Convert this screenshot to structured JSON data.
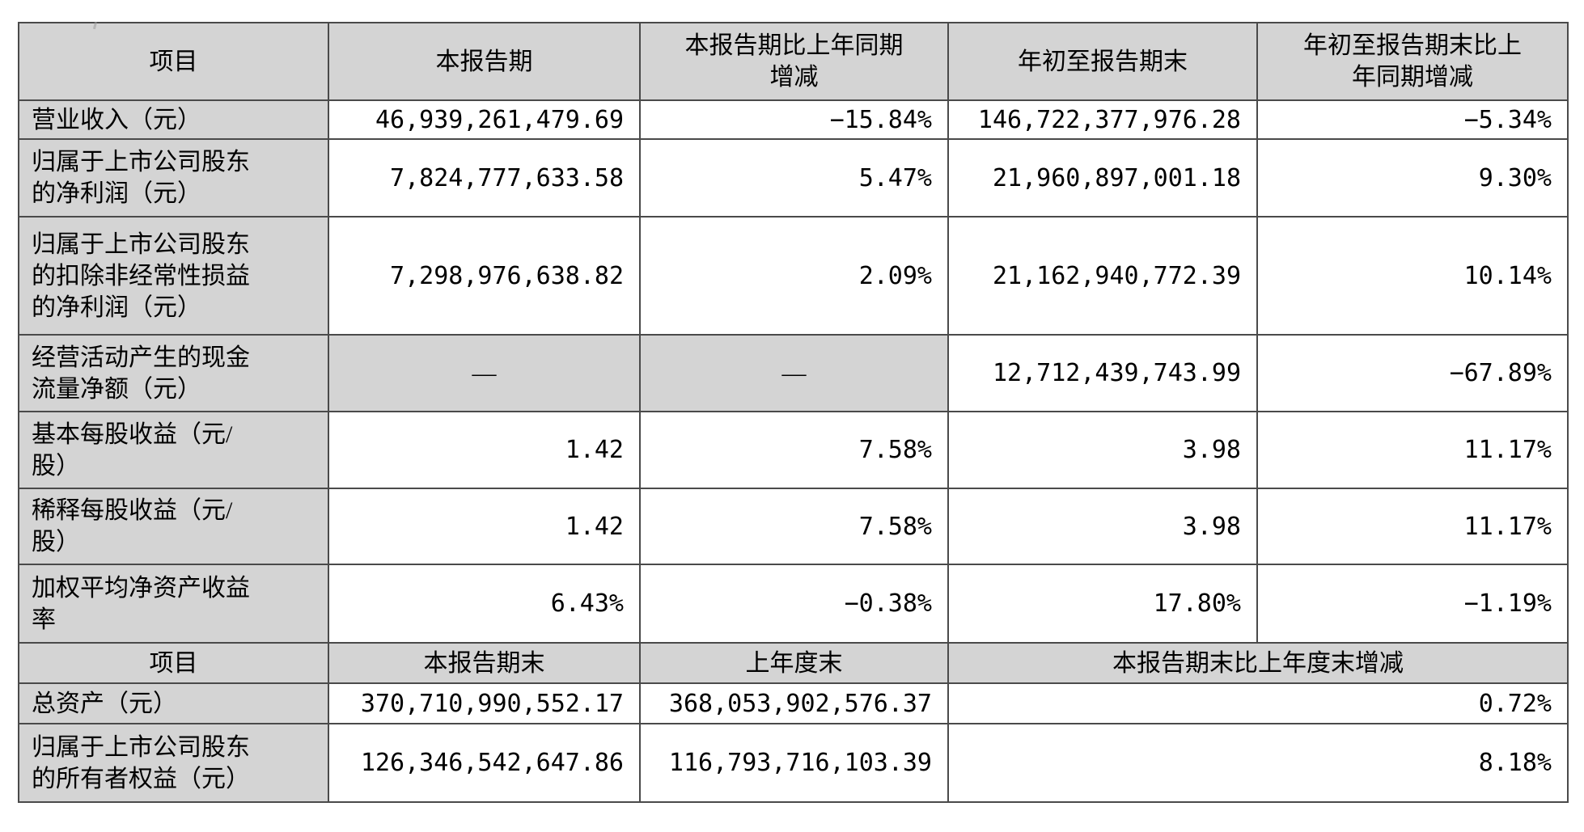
{
  "table": {
    "colors": {
      "header_bg": "#d4d4d4",
      "cell_bg": "#ffffff",
      "border": "#4a4a4a",
      "text": "#000000"
    },
    "section1": {
      "headers": [
        "项目",
        "本报告期",
        "本报告期比上年同期\n增减",
        "年初至报告期末",
        "年初至报告期末比上\n年同期增减"
      ],
      "rows": [
        {
          "label": "营业收入（元）",
          "cells": [
            {
              "v": "46,939,261,479.69"
            },
            {
              "v": "−15.84%"
            },
            {
              "v": "146,722,377,976.28"
            },
            {
              "v": "−5.34%"
            }
          ]
        },
        {
          "label": "归属于上市公司股东\n的净利润（元）",
          "cells": [
            {
              "v": "7,824,777,633.58"
            },
            {
              "v": "5.47%"
            },
            {
              "v": "21,960,897,001.18"
            },
            {
              "v": "9.30%"
            }
          ]
        },
        {
          "label": "归属于上市公司股东\n的扣除非经常性损益\n的净利润（元）",
          "cells": [
            {
              "v": "7,298,976,638.82"
            },
            {
              "v": "2.09%"
            },
            {
              "v": "21,162,940,772.39"
            },
            {
              "v": "10.14%"
            }
          ]
        },
        {
          "label": "经营活动产生的现金\n流量净额（元）",
          "cells": [
            {
              "v": "—",
              "dash": true
            },
            {
              "v": "—",
              "dash": true
            },
            {
              "v": "12,712,439,743.99"
            },
            {
              "v": "−67.89%"
            }
          ]
        },
        {
          "label": "基本每股收益（元/\n股）",
          "cells": [
            {
              "v": "1.42"
            },
            {
              "v": "7.58%"
            },
            {
              "v": "3.98"
            },
            {
              "v": "11.17%"
            }
          ]
        },
        {
          "label": "稀释每股收益（元/\n股）",
          "cells": [
            {
              "v": "1.42"
            },
            {
              "v": "7.58%"
            },
            {
              "v": "3.98"
            },
            {
              "v": "11.17%"
            }
          ]
        },
        {
          "label": "加权平均净资产收益\n率",
          "cells": [
            {
              "v": "6.43%"
            },
            {
              "v": "−0.38%"
            },
            {
              "v": "17.80%"
            },
            {
              "v": "−1.19%"
            }
          ]
        }
      ]
    },
    "section2": {
      "headers": [
        "项目",
        "本报告期末",
        "上年度末",
        "本报告期末比上年度末增减"
      ],
      "rows": [
        {
          "label": "总资产（元）",
          "cells": [
            {
              "v": "370,710,990,552.17"
            },
            {
              "v": "368,053,902,576.37"
            },
            {
              "v": "0.72%",
              "colspan": 2
            }
          ]
        },
        {
          "label": "归属于上市公司股东\n的所有者权益（元）",
          "cells": [
            {
              "v": "126,346,542,647.86"
            },
            {
              "v": "116,793,716,103.39"
            },
            {
              "v": "8.18%",
              "colspan": 2
            }
          ]
        }
      ]
    }
  }
}
